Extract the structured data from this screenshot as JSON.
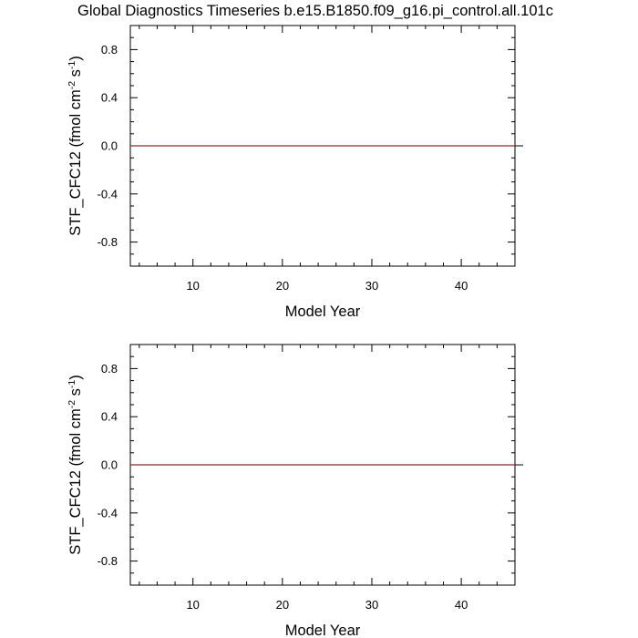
{
  "title": "Global Diagnostics Timeseries b.e15.B1850.f09_g16.pi_control.all.101c",
  "chart_data": [
    {
      "type": "line",
      "xlabel": "Model Year",
      "ylabel": {
        "base": "STF_CFC12 (fmol cm",
        "exp1": "-2",
        "mid": " s",
        "exp2": "-1",
        "end": ")"
      },
      "xlim": [
        3,
        46
      ],
      "ylim": [
        -1.0,
        1.0
      ],
      "xticks": [
        {
          "value": 10,
          "label": "10"
        },
        {
          "value": 20,
          "label": "20"
        },
        {
          "value": 30,
          "label": "30"
        },
        {
          "value": 40,
          "label": "40"
        }
      ],
      "yticks": [
        {
          "value": 0.8,
          "label": "0.8"
        },
        {
          "value": 0.4,
          "label": "0.4"
        },
        {
          "value": 0.0,
          "label": "0.0"
        },
        {
          "value": -0.4,
          "label": "-0.4"
        },
        {
          "value": -0.8,
          "label": "-0.8"
        }
      ],
      "x_minor_step": 2,
      "y_minor_step": 0.1,
      "zero_line": true,
      "series": [
        {
          "x": [
            3,
            46
          ],
          "y": [
            0,
            0
          ],
          "color": "#8b2d2d"
        }
      ]
    },
    {
      "type": "line",
      "xlabel": "Model Year",
      "ylabel": {
        "base": "STF_CFC12 (fmol cm",
        "exp1": "-2",
        "mid": " s",
        "exp2": "-1",
        "end": ")"
      },
      "xlim": [
        3,
        46
      ],
      "ylim": [
        -1.0,
        1.0
      ],
      "xticks": [
        {
          "value": 10,
          "label": "10"
        },
        {
          "value": 20,
          "label": "20"
        },
        {
          "value": 30,
          "label": "30"
        },
        {
          "value": 40,
          "label": "40"
        }
      ],
      "yticks": [
        {
          "value": 0.8,
          "label": "0.8"
        },
        {
          "value": 0.4,
          "label": "0.4"
        },
        {
          "value": 0.0,
          "label": "0.0"
        },
        {
          "value": -0.4,
          "label": "-0.4"
        },
        {
          "value": -0.8,
          "label": "-0.8"
        }
      ],
      "x_minor_step": 2,
      "y_minor_step": 0.1,
      "zero_line": true,
      "series": [
        {
          "x": [
            3,
            46
          ],
          "y": [
            0,
            0
          ],
          "color": "#8b2d2d"
        }
      ]
    }
  ]
}
